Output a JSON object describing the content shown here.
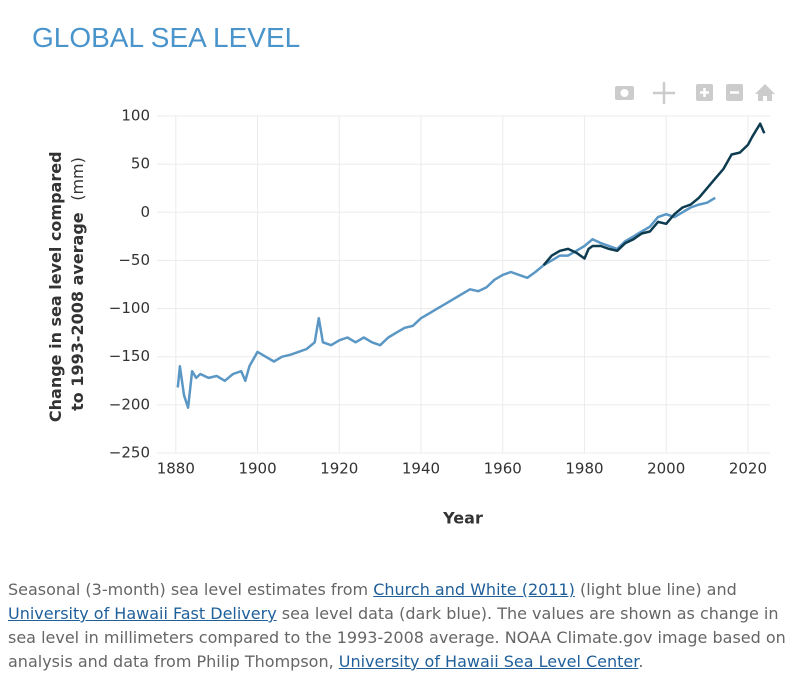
{
  "chart_data": {
    "type": "line",
    "title": "GLOBAL SEA LEVEL",
    "x_label": "Year",
    "y_label_lines": [
      "Change in sea level compared",
      "to 1993-2008 average"
    ],
    "y_label_unit": "(mm)",
    "xlim": [
      1875.4,
      2025.4
    ],
    "xticks": [
      1880,
      1900,
      1920,
      1940,
      1960,
      1980,
      2000,
      2020
    ],
    "ylim": [
      -250,
      100
    ],
    "yticks": [
      {
        "value": -250,
        "label": "−250"
      },
      {
        "value": -200,
        "label": "−200"
      },
      {
        "value": -150,
        "label": "−150"
      },
      {
        "value": -100,
        "label": "−100"
      },
      {
        "value": -50,
        "label": "−50"
      },
      0,
      50,
      100
    ],
    "grid": true,
    "series": [
      {
        "color": "#5b97c4",
        "x": [
          1880.5,
          1881,
          1882,
          1883,
          1884,
          1885,
          1886,
          1888,
          1890,
          1892,
          1894,
          1896,
          1897,
          1898,
          1900,
          1902,
          1904,
          1906,
          1908,
          1910,
          1912,
          1914,
          1915,
          1916,
          1918,
          1920,
          1922,
          1924,
          1926,
          1928,
          1930,
          1932,
          1934,
          1936,
          1938,
          1940,
          1942,
          1944,
          1946,
          1948,
          1950,
          1952,
          1954,
          1956,
          1958,
          1960,
          1962,
          1964,
          1966,
          1968,
          1970,
          1972,
          1974,
          1976,
          1978,
          1980,
          1982,
          1984,
          1986,
          1988,
          1990,
          1992,
          1994,
          1996,
          1998,
          2000,
          2002,
          2004,
          2006,
          2008,
          2010,
          2012
        ],
        "values": [
          -182,
          -160,
          -190,
          -203,
          -165,
          -172,
          -168,
          -172,
          -170,
          -175,
          -168,
          -165,
          -175,
          -160,
          -145,
          -150,
          -155,
          -150,
          -148,
          -145,
          -142,
          -135,
          -110,
          -135,
          -138,
          -133,
          -130,
          -135,
          -130,
          -135,
          -138,
          -130,
          -125,
          -120,
          -118,
          -110,
          -105,
          -100,
          -95,
          -90,
          -85,
          -80,
          -82,
          -78,
          -70,
          -65,
          -62,
          -65,
          -68,
          -62,
          -55,
          -50,
          -45,
          -45,
          -40,
          -35,
          -28,
          -32,
          -35,
          -38,
          -30,
          -25,
          -20,
          -15,
          -5,
          -2,
          -5,
          0,
          5,
          8,
          10,
          15
        ]
      },
      {
        "color": "#0d3b4f",
        "x": [
          1970,
          1972,
          1974,
          1976,
          1978,
          1980,
          1981,
          1982,
          1984,
          1986,
          1988,
          1990,
          1992,
          1994,
          1996,
          1998,
          2000,
          2002,
          2004,
          2006,
          2008,
          2010,
          2012,
          2014,
          2016,
          2018,
          2020,
          2021,
          2022,
          2023,
          2024
        ],
        "values": [
          -55,
          -45,
          -40,
          -38,
          -42,
          -48,
          -38,
          -35,
          -35,
          -38,
          -40,
          -32,
          -28,
          -22,
          -20,
          -10,
          -12,
          -2,
          5,
          8,
          15,
          25,
          35,
          45,
          60,
          62,
          70,
          78,
          85,
          92,
          82
        ]
      }
    ]
  },
  "caption_parts": [
    {
      "text": "Seasonal (3-month) sea level estimates from "
    },
    {
      "link": "Church and White (2011)"
    },
    {
      "text": " (light blue line) and "
    },
    {
      "link": "University of Hawaii Fast Delivery"
    },
    {
      "text": " sea level data (dark blue). The values are shown as change in sea level in millimeters compared to the 1993-2008 average. NOAA Climate.gov image based on analysis and data from Philip Thompson, "
    },
    {
      "link": "University of Hawaii Sea Level Center"
    },
    {
      "text": "."
    }
  ]
}
